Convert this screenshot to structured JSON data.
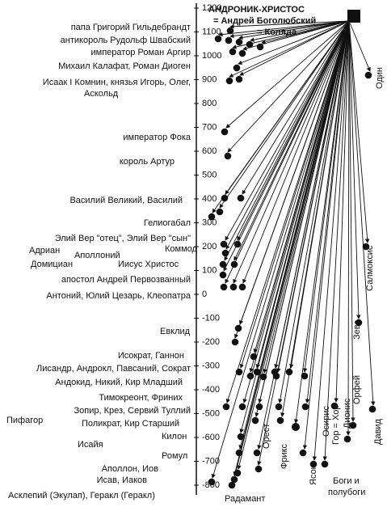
{
  "axis": {
    "ticks": [
      1200,
      1100,
      1000,
      900,
      800,
      700,
      600,
      500,
      400,
      300,
      200,
      100,
      0,
      -100,
      -200,
      -300,
      -400,
      -500,
      -600,
      -700,
      -800
    ]
  },
  "header": {
    "lines": [
      "АНДРОНИК-ХРИСТОС",
      "= Андрей Боголюбский",
      "= Коляда"
    ]
  },
  "left_labels": [
    "папа Григорий Гильдебрандт",
    "антикороль Рудольф Швабский",
    "император Роман Аргир",
    "Михаил Калафат, Роман Диоген",
    "Исаак I Комнин, князья Игорь, Олег,",
    "Аскольд",
    "император Фока",
    "король Артур",
    "Василий Великий,  Василий",
    "Гелиогабал",
    "Элий Вер \"отец\", Элий Вер \"сын\"",
    "Адриан",
    "Аполлоний",
    "Коммод",
    "Домициан",
    "Иисус Христос",
    "апостол Андрей Первозванный",
    "Антоний, Юлий Цезарь, Клеопатра",
    "Евклид",
    "Исократ, Ганнон",
    "Лисандр, Андрокл, Павсаний, Сократ",
    "Андокид, Никий, Кир Младший",
    "Тимокреонт, Фриних",
    "Зопир, Крез, Сервий Туллий",
    "Пифагор",
    "Поликрат, Кир Старший",
    "Килон",
    "Исайя",
    "Ромул",
    "Аполлон, Иов",
    "Исав, Иаков",
    "Асклепий (Экулап), Геракл (Геракл)"
  ],
  "right_labels": [
    "Радамант",
    "Орест",
    "Фрикс",
    "Ясон",
    "Осирис",
    "Гор = Хор",
    "Дионис",
    "Орфей",
    "Зевс",
    "Давид",
    "Салмоксис",
    "Один",
    "Боги и",
    "полубоги"
  ]
}
